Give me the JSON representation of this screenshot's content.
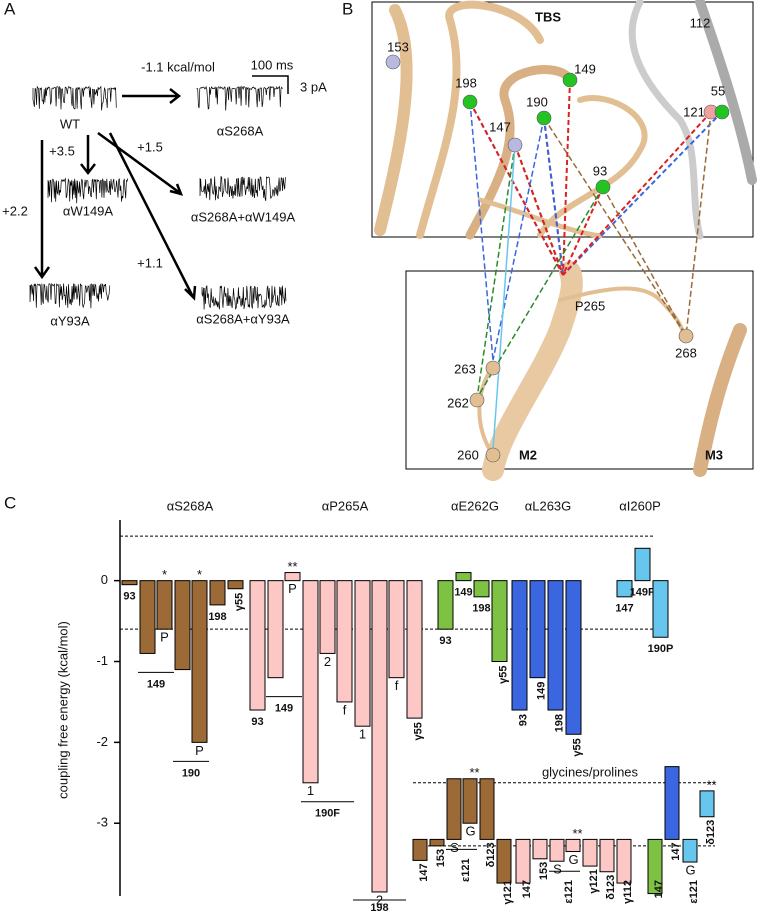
{
  "panel_a": {
    "label": "A",
    "wt": "WT",
    "energies": [
      "-1.1 kcal/mol",
      "+3.5",
      "+1.5",
      "+2.2",
      "+1.1"
    ],
    "scale_time": "100 ms",
    "scale_current": "3 pA",
    "mutants": [
      "αS268A",
      "αW149A",
      "αS268A+αW149A",
      "αY93A",
      "αS268A+αY93A"
    ]
  },
  "panel_b": {
    "label": "B",
    "title": "TBS",
    "residues": [
      "153",
      "198",
      "149",
      "190",
      "147",
      "93",
      "112",
      "121",
      "55",
      "P265",
      "263",
      "262",
      "268",
      "260"
    ],
    "helices": [
      "M2",
      "M3"
    ]
  },
  "panel_c_label": "C",
  "chart_data": {
    "type": "bar",
    "ylabel": "coupling free energy (kcal/mol)",
    "ylim": [
      -3.9,
      0.75
    ],
    "yticks": [
      0,
      -1,
      -2,
      -3
    ],
    "reference_lines": [
      0.55,
      -0.6,
      -2.5,
      -3.28
    ],
    "groups": [
      {
        "name": "αS268A",
        "color": "#9b6a36",
        "items": [
          {
            "label": "93",
            "values": [
              -0.05
            ]
          },
          {
            "label": "149",
            "values": [
              -0.9,
              -0.6
            ],
            "subs": [
              null,
              "P"
            ],
            "stars": [
              null,
              "*"
            ]
          },
          {
            "label": "190",
            "values": [
              -1.1,
              -2.0
            ],
            "subs": [
              null,
              "P"
            ],
            "stars": [
              null,
              "*"
            ]
          },
          {
            "label": "198",
            "values": [
              -0.3
            ]
          },
          {
            "label": "γ55",
            "values": [
              -0.1
            ]
          }
        ]
      },
      {
        "name": "αP265A",
        "color": "#fcc7c5",
        "items": [
          {
            "label": "93",
            "values": [
              -1.6
            ]
          },
          {
            "label": "149",
            "values": [
              -1.2,
              0.1
            ],
            "subs": [
              null,
              "P"
            ],
            "stars": [
              null,
              "**"
            ]
          },
          {
            "label": "190F",
            "values": [
              -2.5,
              -0.9,
              -1.5
            ],
            "subs": [
              "1",
              "2",
              "f"
            ]
          },
          {
            "label": "198",
            "values": [
              -1.8,
              -3.85,
              -1.2
            ],
            "subs": [
              "1",
              "2",
              "f"
            ]
          },
          {
            "label": "γ55",
            "values": [
              -1.7
            ]
          }
        ]
      },
      {
        "name": "αE262G",
        "color": "#7dc242",
        "items": [
          {
            "label": "93",
            "values": [
              -0.6
            ]
          },
          {
            "label": "149",
            "values": [
              0.1
            ]
          },
          {
            "label": "198",
            "values": [
              -0.2
            ]
          },
          {
            "label": "γ55",
            "values": [
              -1.0
            ]
          }
        ]
      },
      {
        "name": "αL263G",
        "color": "#3a66e0",
        "items": [
          {
            "label": "93",
            "values": [
              -1.6
            ]
          },
          {
            "label": "149",
            "values": [
              -1.2
            ]
          },
          {
            "label": "198",
            "values": [
              -1.6
            ]
          },
          {
            "label": "γ55",
            "values": [
              -1.9
            ]
          }
        ]
      },
      {
        "name": "αI260P",
        "color": "#67c6ee",
        "items": [
          {
            "label": "147",
            "values": [
              -0.2
            ]
          },
          {
            "label": "149P",
            "values": [
              0.4
            ]
          },
          {
            "label": "190P",
            "values": [
              -0.7
            ]
          }
        ]
      }
    ],
    "lower": {
      "label": "glycines/prolines",
      "groups": [
        {
          "color": "#9b6a36",
          "items": [
            {
              "label": "147",
              "ranges": [
                [
                  -3.2,
                  -3.46
                ]
              ]
            },
            {
              "label": "153",
              "ranges": [
                [
                  -3.2,
                  -3.28
                ]
              ]
            },
            {
              "label": "ε121",
              "ranges": [
                [
                  -2.45,
                  -3.2
                ],
                [
                  -2.45,
                  -3.0
                ]
              ],
              "subs": [
                "S",
                "G"
              ],
              "stars": [
                null,
                "**"
              ]
            },
            {
              "label": "δ123",
              "ranges": [
                [
                  -2.45,
                  -3.2
                ]
              ]
            },
            {
              "label": "γ121",
              "ranges": [
                [
                  -3.2,
                  -3.74
                ]
              ]
            }
          ]
        },
        {
          "color": "#fcc7c5",
          "items": [
            {
              "label": "147",
              "ranges": [
                [
                  -3.2,
                  -3.74
                ]
              ]
            },
            {
              "label": "153",
              "ranges": [
                [
                  -3.2,
                  -3.44
                ]
              ]
            },
            {
              "label": "ε121",
              "ranges": [
                [
                  -3.2,
                  -3.47
                ],
                [
                  -3.2,
                  -3.35
                ]
              ],
              "subs": [
                "S",
                "G"
              ],
              "stars": [
                null,
                "**"
              ]
            },
            {
              "label": "γ121",
              "ranges": [
                [
                  -3.2,
                  -3.53
                ]
              ]
            },
            {
              "label": "δ123",
              "ranges": [
                [
                  -3.2,
                  -3.6
                ]
              ]
            },
            {
              "label": "γ112",
              "ranges": [
                [
                  -3.2,
                  -3.74
                ]
              ]
            }
          ]
        },
        {
          "color": "#7dc242",
          "items": [
            {
              "label": "147",
              "ranges": [
                [
                  -3.2,
                  -3.87
                ]
              ]
            }
          ]
        },
        {
          "color": "#3a66e0",
          "items": [
            {
              "label": "147",
              "ranges": [
                [
                  -2.3,
                  -3.2
                ]
              ]
            }
          ]
        },
        {
          "color": "#67c6ee",
          "items": [
            {
              "label": "ε121",
              "ranges": [
                [
                  -3.2,
                  -3.48
                ]
              ],
              "subs": [
                "G"
              ]
            },
            {
              "label": "δ123",
              "ranges": [
                [
                  -2.6,
                  -2.92
                ]
              ],
              "stars": [
                "**"
              ]
            }
          ]
        }
      ]
    }
  }
}
